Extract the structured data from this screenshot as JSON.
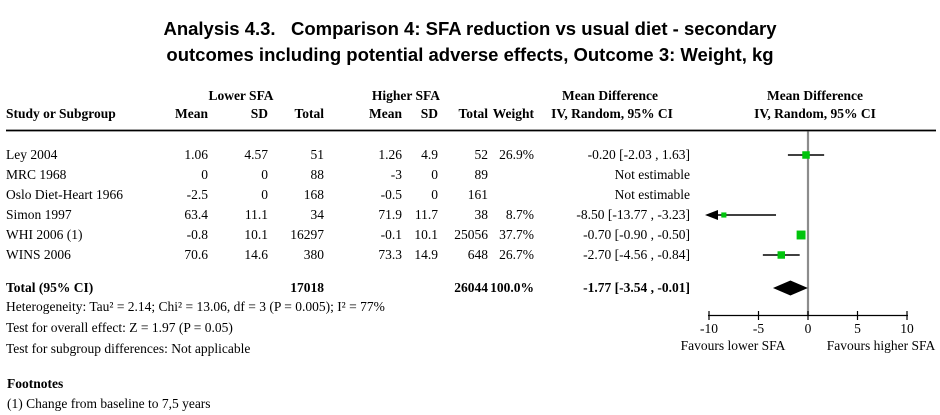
{
  "title": {
    "line1": "Analysis 4.3.   Comparison 4: SFA reduction vs usual diet - secondary",
    "line2": "outcomes including potential adverse effects, Outcome 3: Weight, kg"
  },
  "table": {
    "group_headers": {
      "lower": "Lower SFA",
      "higher": "Higher SFA",
      "md_text": "Mean Difference",
      "md_plot": "Mean Difference"
    },
    "columns": {
      "study": "Study or Subgroup",
      "mean1": "Mean",
      "sd1": "SD",
      "total1": "Total",
      "mean2": "Mean",
      "sd2": "SD",
      "total2": "Total",
      "weight": "Weight",
      "ci": "IV, Random, 95% CI",
      "ci_plot": "IV, Random, 95% CI"
    },
    "rows": [
      {
        "study": "Ley 2004",
        "mean1": "1.06",
        "sd1": "4.57",
        "total1": "51",
        "mean2": "1.26",
        "sd2": "4.9",
        "total2": "52",
        "weight": "26.9%",
        "ci": "-0.20 [-2.03 , 1.63]"
      },
      {
        "study": "MRC 1968",
        "mean1": "0",
        "sd1": "0",
        "total1": "88",
        "mean2": "-3",
        "sd2": "0",
        "total2": "89",
        "weight": "",
        "ci": "Not estimable"
      },
      {
        "study": "Oslo Diet-Heart 1966",
        "mean1": "-2.5",
        "sd1": "0",
        "total1": "168",
        "mean2": "-0.5",
        "sd2": "0",
        "total2": "161",
        "weight": "",
        "ci": "Not estimable"
      },
      {
        "study": "Simon 1997",
        "mean1": "63.4",
        "sd1": "11.1",
        "total1": "34",
        "mean2": "71.9",
        "sd2": "11.7",
        "total2": "38",
        "weight": "8.7%",
        "ci": "-8.50 [-13.77 , -3.23]"
      },
      {
        "study": "WHI 2006 (1)",
        "mean1": "-0.8",
        "sd1": "10.1",
        "total1": "16297",
        "mean2": "-0.1",
        "sd2": "10.1",
        "total2": "25056",
        "weight": "37.7%",
        "ci": "-0.70 [-0.90 , -0.50]"
      },
      {
        "study": "WINS 2006",
        "mean1": "70.6",
        "sd1": "14.6",
        "total1": "380",
        "mean2": "73.3",
        "sd2": "14.9",
        "total2": "648",
        "weight": "26.7%",
        "ci": "-2.70 [-4.56 , -0.84]"
      }
    ],
    "total_row": {
      "label": "Total (95% CI)",
      "total1": "17018",
      "total2": "26044",
      "weight": "100.0%",
      "ci": "-1.77 [-3.54 , -0.01]"
    },
    "stats": [
      "Heterogeneity: Tau² = 2.14; Chi² = 13.06, df = 3 (P = 0.005); I² = 77%",
      "Test for overall effect: Z = 1.97 (P = 0.05)",
      "Test for subgroup differences: Not applicable"
    ]
  },
  "footnotes": {
    "heading": "Footnotes",
    "items": [
      "(1) Change from baseline to 7,5 years"
    ]
  },
  "chart_data": {
    "type": "forest",
    "effect_measure": "Mean Difference, IV, Random, 95% CI",
    "x_axis": {
      "min": -10,
      "max": 10,
      "ticks": [
        -10,
        -5,
        0,
        5,
        10
      ],
      "label_left": "Favours lower SFA",
      "label_right": "Favours higher SFA"
    },
    "studies": [
      {
        "name": "Ley 2004",
        "est": -0.2,
        "lo": -2.03,
        "hi": 1.63,
        "weight": 26.9
      },
      {
        "name": "MRC 1968",
        "est": null,
        "lo": null,
        "hi": null,
        "weight": null
      },
      {
        "name": "Oslo Diet-Heart 1966",
        "est": null,
        "lo": null,
        "hi": null,
        "weight": null
      },
      {
        "name": "Simon 1997",
        "est": -8.5,
        "lo": -13.77,
        "hi": -3.23,
        "weight": 8.7
      },
      {
        "name": "WHI 2006 (1)",
        "est": -0.7,
        "lo": -0.9,
        "hi": -0.5,
        "weight": 37.7
      },
      {
        "name": "WINS 2006",
        "est": -2.7,
        "lo": -4.56,
        "hi": -0.84,
        "weight": 26.7
      }
    ],
    "total": {
      "est": -1.77,
      "lo": -3.54,
      "hi": -0.01
    },
    "colors": {
      "marker": "#00c40c",
      "diamond": "#000000",
      "zero_line": "#8c8c8c",
      "axis": "#000000"
    }
  }
}
